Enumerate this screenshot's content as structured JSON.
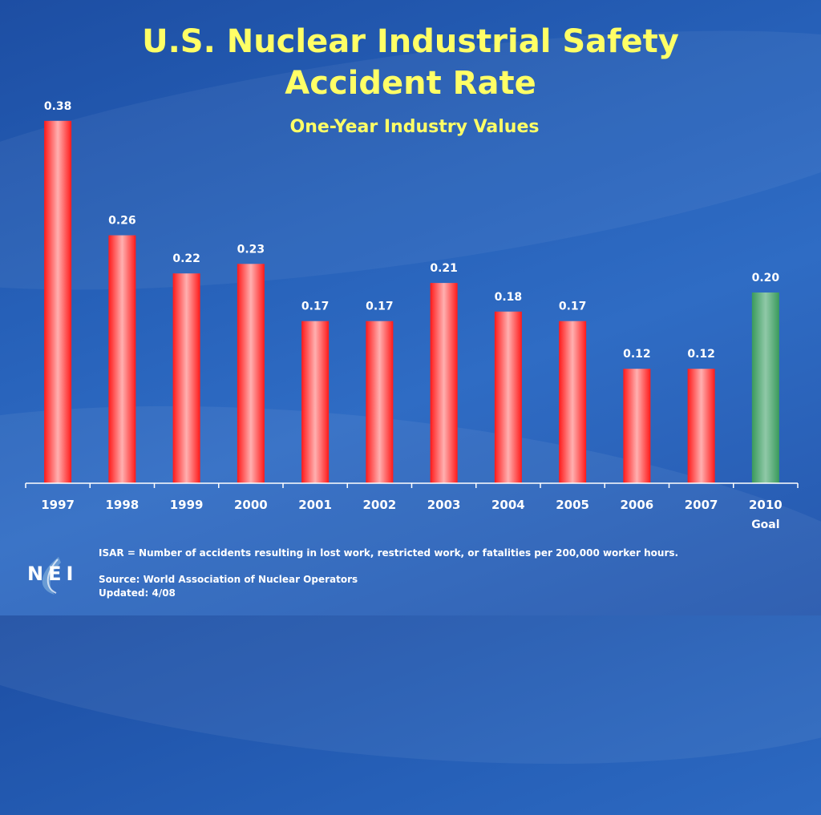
{
  "chart_data": {
    "type": "bar",
    "title": "U.S. Nuclear Industrial Safety Accident Rate",
    "subtitle": "One-Year Industry Values",
    "categories": [
      "1997",
      "1998",
      "1999",
      "2000",
      "2001",
      "2002",
      "2003",
      "2004",
      "2005",
      "2006",
      "2007",
      "2010"
    ],
    "category_sublabels": [
      "",
      "",
      "",
      "",
      "",
      "",
      "",
      "",
      "",
      "",
      "",
      "Goal"
    ],
    "values": [
      0.38,
      0.26,
      0.22,
      0.23,
      0.17,
      0.17,
      0.21,
      0.18,
      0.17,
      0.12,
      0.12,
      0.2
    ],
    "value_labels": [
      "0.38",
      "0.26",
      "0.22",
      "0.23",
      "0.17",
      "0.17",
      "0.21",
      "0.18",
      "0.17",
      "0.12",
      "0.12",
      "0.20"
    ],
    "highlight_index": 11,
    "ylim": [
      0,
      0.4
    ],
    "xlabel": "",
    "ylabel": "",
    "grid": false,
    "colors": {
      "bar": "#ff1a1a",
      "bar_light": "#ffb0b0",
      "goal": "#3a9a5c",
      "goal_light": "#90c9a8",
      "title": "#ffff66"
    }
  },
  "title_line1": "U.S. Nuclear Industrial Safety",
  "title_line2": "Accident Rate",
  "footnote_definition": "ISAR = Number of accidents resulting in lost work, restricted work, or fatalities per 200,000 worker hours.",
  "source": "Source:  World Association of Nuclear Operators",
  "updated": "Updated: 4/08",
  "logo_text": "NEI",
  "logo_icon": "nei-swirl-logo"
}
